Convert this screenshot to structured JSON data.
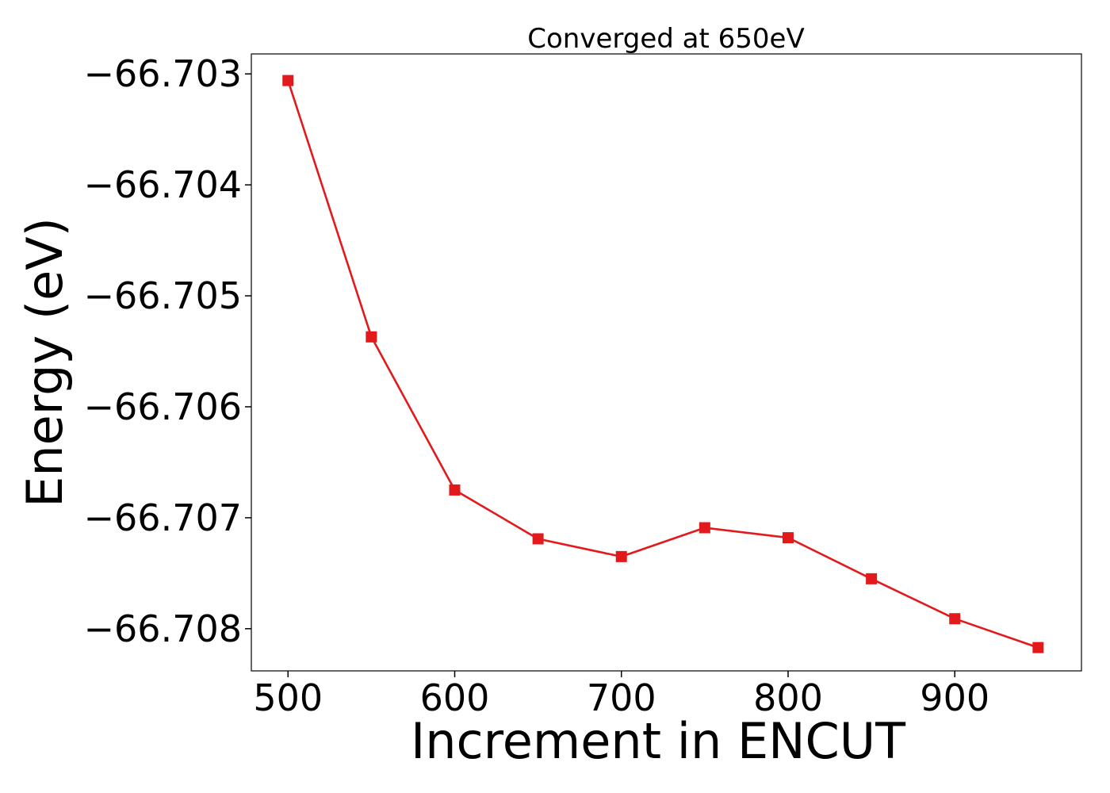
{
  "chart_data": {
    "type": "line",
    "title": "Converged at 650eV",
    "xlabel": "Increment in ENCUT",
    "ylabel": "Energy (eV)",
    "xlim": [
      478,
      976
    ],
    "ylim": [
      -66.70838,
      -66.70282
    ],
    "xticks": [
      500,
      600,
      700,
      800,
      900
    ],
    "xtick_labels": [
      "500",
      "600",
      "700",
      "800",
      "900"
    ],
    "yticks": [
      -66.703,
      -66.704,
      -66.705,
      -66.706,
      -66.707,
      -66.708
    ],
    "ytick_labels": [
      "−66.703",
      "−66.704",
      "−66.705",
      "−66.706",
      "−66.707",
      "−66.708"
    ],
    "grid": false,
    "legend": false,
    "marker": "square",
    "color": "#e31a1c",
    "series": [
      {
        "x": [
          500,
          550,
          600,
          650,
          700,
          750,
          800,
          850,
          900,
          950
        ],
        "y": [
          -66.70306,
          -66.70537,
          -66.70675,
          -66.70719,
          -66.70735,
          -66.70709,
          -66.70718,
          -66.70755,
          -66.70791,
          -66.70817
        ]
      }
    ]
  }
}
